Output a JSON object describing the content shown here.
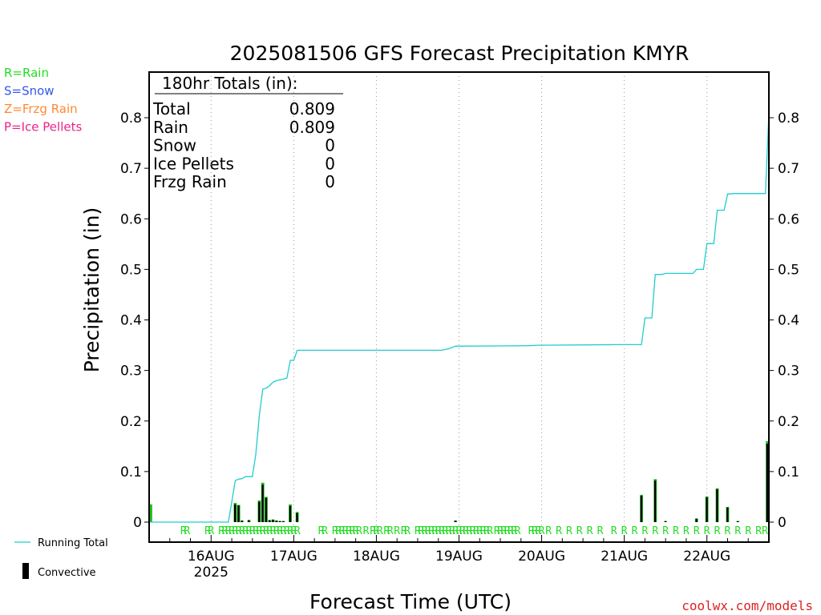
{
  "chart_data": {
    "type": "bar",
    "title": "2025081506 GFS Forecast Precipitation KMYR",
    "xlabel": "Forecast Time (UTC)",
    "ylabel": "Precipitation (in)",
    "ylim": [
      0,
      0.88
    ],
    "yticks": [
      0,
      0.1,
      0.2,
      0.3,
      0.4,
      0.5,
      0.6,
      0.7,
      0.8
    ],
    "ytick_labels": [
      "0",
      "0.1",
      "0.2",
      "0.3",
      "0.4",
      "0.5",
      "0.6",
      "0.7",
      "0.8"
    ],
    "xlim_hours": [
      0,
      180
    ],
    "x_ticks": [
      {
        "hour": 18,
        "label": "16AUG",
        "sublabel": "2025"
      },
      {
        "hour": 42,
        "label": "17AUG"
      },
      {
        "hour": 66,
        "label": "18AUG"
      },
      {
        "hour": 90,
        "label": "19AUG"
      },
      {
        "hour": 114,
        "label": "20AUG"
      },
      {
        "hour": 138,
        "label": "21AUG"
      },
      {
        "hour": 162,
        "label": "22AUG"
      }
    ],
    "grid": "vertical dotted at day boundaries",
    "precip_type_legend": [
      {
        "text": "R=Rain",
        "color": "#22dd22"
      },
      {
        "text": "S=Snow",
        "color": "#3355ee"
      },
      {
        "text": "Z=Frzg Rain",
        "color": "#ff8833"
      },
      {
        "text": "P=Ice Pellets",
        "color": "#ee2288"
      }
    ],
    "series_legend": [
      {
        "text": "Running Total",
        "color": "#22cccc"
      },
      {
        "text": "Convective",
        "color": "#000000"
      }
    ],
    "totals": {
      "heading": "180hr Totals (in):",
      "rows": [
        {
          "label": "Total",
          "value": "0.809"
        },
        {
          "label": "Rain",
          "value": "0.809"
        },
        {
          "label": "Snow",
          "value": "0"
        },
        {
          "label": "Ice Pellets",
          "value": "0"
        },
        {
          "label": "Frzg Rain",
          "value": "0"
        }
      ]
    },
    "running_total": [
      [
        0,
        0
      ],
      [
        23,
        0
      ],
      [
        24,
        0.04
      ],
      [
        25,
        0.082
      ],
      [
        26,
        0.085
      ],
      [
        27,
        0.086
      ],
      [
        28,
        0.09
      ],
      [
        30,
        0.09
      ],
      [
        31,
        0.135
      ],
      [
        32,
        0.21
      ],
      [
        33,
        0.263
      ],
      [
        34,
        0.265
      ],
      [
        35,
        0.27
      ],
      [
        36,
        0.277
      ],
      [
        37,
        0.28
      ],
      [
        39,
        0.283
      ],
      [
        40,
        0.285
      ],
      [
        41,
        0.32
      ],
      [
        42,
        0.32
      ],
      [
        43,
        0.34
      ],
      [
        85,
        0.34
      ],
      [
        87,
        0.343
      ],
      [
        89,
        0.348
      ],
      [
        110,
        0.349
      ],
      [
        113,
        0.35
      ],
      [
        135,
        0.351
      ],
      [
        143,
        0.351
      ],
      [
        144,
        0.404
      ],
      [
        146,
        0.404
      ],
      [
        147,
        0.49
      ],
      [
        149,
        0.49
      ],
      [
        150,
        0.492
      ],
      [
        158,
        0.492
      ],
      [
        159,
        0.5
      ],
      [
        161,
        0.5
      ],
      [
        162,
        0.551
      ],
      [
        164,
        0.551
      ],
      [
        165,
        0.617
      ],
      [
        167,
        0.617
      ],
      [
        168,
        0.649
      ],
      [
        170,
        0.65
      ],
      [
        179,
        0.65
      ],
      [
        180,
        0.809
      ]
    ],
    "bars": [
      {
        "hour": 0,
        "total": 0.035,
        "convective": 0
      },
      {
        "hour": 25,
        "total": 0.038,
        "convective": 0.035
      },
      {
        "hour": 26,
        "total": 0.034,
        "convective": 0.033
      },
      {
        "hour": 27,
        "total": 0.003,
        "convective": 0.003
      },
      {
        "hour": 29,
        "total": 0.004,
        "convective": 0.004
      },
      {
        "hour": 32,
        "total": 0.043,
        "convective": 0.04
      },
      {
        "hour": 33,
        "total": 0.078,
        "convective": 0.074
      },
      {
        "hour": 34,
        "total": 0.05,
        "convective": 0.048
      },
      {
        "hour": 35,
        "total": 0.004,
        "convective": 0.004
      },
      {
        "hour": 36,
        "total": 0.005,
        "convective": 0.005
      },
      {
        "hour": 37,
        "total": 0.003,
        "convective": 0.003
      },
      {
        "hour": 38,
        "total": 0.002,
        "convective": 0.002
      },
      {
        "hour": 39,
        "total": 0.002,
        "convective": 0.002
      },
      {
        "hour": 41,
        "total": 0.035,
        "convective": 0.032
      },
      {
        "hour": 43,
        "total": 0.02,
        "convective": 0.018
      },
      {
        "hour": 89,
        "total": 0.003,
        "convective": 0.003
      },
      {
        "hour": 143,
        "total": 0.054,
        "convective": 0.052
      },
      {
        "hour": 147,
        "total": 0.085,
        "convective": 0.082
      },
      {
        "hour": 150,
        "total": 0.002,
        "convective": 0.002
      },
      {
        "hour": 159,
        "total": 0.007,
        "convective": 0.007
      },
      {
        "hour": 162,
        "total": 0.051,
        "convective": 0.049
      },
      {
        "hour": 165,
        "total": 0.067,
        "convective": 0.065
      },
      {
        "hour": 168,
        "total": 0.03,
        "convective": 0.029
      },
      {
        "hour": 171,
        "total": 0.002,
        "convective": 0.002
      },
      {
        "hour": 180,
        "total": 0.16,
        "convective": 0.155
      }
    ],
    "rain_hours": [
      10,
      11,
      17,
      18,
      21,
      22,
      23,
      24,
      25,
      26,
      27,
      28,
      29,
      30,
      31,
      32,
      33,
      34,
      35,
      36,
      37,
      38,
      39,
      40,
      41,
      42,
      43,
      50,
      51,
      54,
      55,
      56,
      57,
      58,
      59,
      60,
      61,
      63,
      65,
      66,
      67,
      69,
      70,
      72,
      74,
      75,
      78,
      79,
      80,
      81,
      82,
      83,
      84,
      85,
      86,
      87,
      88,
      89,
      90,
      91,
      92,
      93,
      94,
      95,
      96,
      97,
      98,
      99,
      101,
      102,
      103,
      104,
      105,
      106,
      107,
      111,
      112,
      113,
      114,
      116,
      119,
      122,
      125,
      128,
      131,
      135,
      138,
      141,
      144,
      147,
      150,
      153,
      156,
      159,
      162,
      165,
      168,
      171,
      174,
      177,
      180
    ],
    "rain_marker": "R",
    "credit": "coolwx.com/models"
  }
}
